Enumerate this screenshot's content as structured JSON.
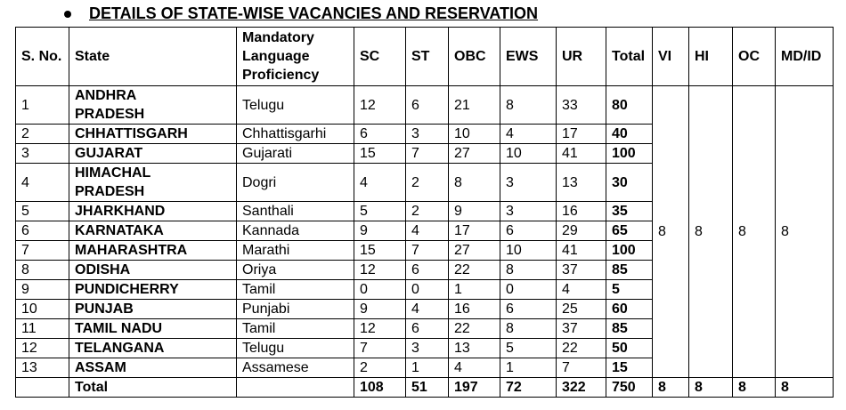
{
  "heading": "DETAILS OF STATE-WISE VACANCIES AND RESERVATION",
  "table": {
    "headers": [
      "S. No.",
      "State",
      "Mandatory Language Proficiency",
      "SC",
      "ST",
      "OBC",
      "EWS",
      "UR",
      "Total",
      "VI",
      "HI",
      "OC",
      "MD/ID"
    ],
    "rows": [
      [
        1,
        "ANDHRA PRADESH",
        "Telugu",
        12,
        6,
        21,
        8,
        33,
        80
      ],
      [
        2,
        "CHHATTISGARH",
        "Chhattisgarhi",
        6,
        3,
        10,
        4,
        17,
        40
      ],
      [
        3,
        "GUJARAT",
        "Gujarati",
        15,
        7,
        27,
        10,
        41,
        100
      ],
      [
        4,
        "HIMACHAL PRADESH",
        "Dogri",
        4,
        2,
        8,
        3,
        13,
        30
      ],
      [
        5,
        "JHARKHAND",
        "Santhali",
        5,
        2,
        9,
        3,
        16,
        35
      ],
      [
        6,
        "KARNATAKA",
        "Kannada",
        9,
        4,
        17,
        6,
        29,
        65
      ],
      [
        7,
        "MAHARASHTRA",
        "Marathi",
        15,
        7,
        27,
        10,
        41,
        100
      ],
      [
        8,
        "ODISHA",
        "Oriya",
        12,
        6,
        22,
        8,
        37,
        85
      ],
      [
        9,
        "PUNDICHERRY",
        "Tamil",
        0,
        0,
        1,
        0,
        4,
        5
      ],
      [
        10,
        "PUNJAB",
        "Punjabi",
        9,
        4,
        16,
        6,
        25,
        60
      ],
      [
        11,
        "TAMIL NADU",
        "Tamil",
        12,
        6,
        22,
        8,
        37,
        85
      ],
      [
        12,
        "TELANGANA",
        "Telugu",
        7,
        3,
        13,
        5,
        22,
        50
      ],
      [
        13,
        "ASSAM",
        "Assamese",
        2,
        1,
        4,
        1,
        7,
        15
      ]
    ],
    "merged": [
      8,
      8,
      8,
      8
    ],
    "total_row": {
      "label": "Total",
      "values": [
        108,
        51,
        197,
        72,
        322,
        750,
        8,
        8,
        8,
        8
      ]
    }
  }
}
